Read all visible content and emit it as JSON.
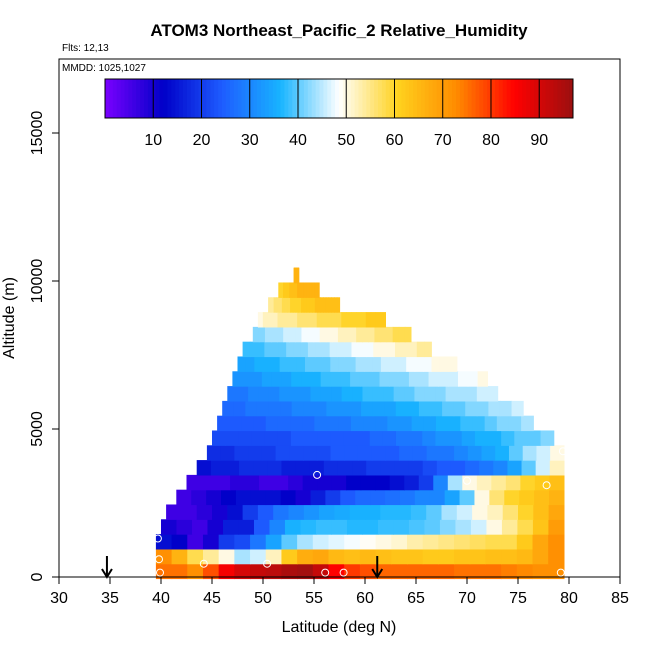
{
  "chart_data": {
    "type": "heatmap",
    "title": "ATOM3 Northeast_Pacific_2 Relative_Humidity",
    "flights_label": "Flts: 12,13",
    "dates_label": "MMDD: 1025,1027",
    "xlabel": "Latitude (deg N)",
    "ylabel": "Altitude (m)",
    "xlim": [
      30,
      85
    ],
    "ylim": [
      0,
      17500
    ],
    "x_ticks": [
      30,
      35,
      40,
      45,
      50,
      55,
      60,
      65,
      70,
      75,
      80,
      85
    ],
    "y_ticks": [
      0,
      5000,
      10000,
      15000
    ],
    "colorbar": {
      "range": [
        0,
        97
      ],
      "ticks": [
        10,
        20,
        30,
        40,
        50,
        60,
        70,
        80,
        90
      ],
      "colors": [
        "#7a00ff",
        "#0000c8",
        "#1e5cff",
        "#18b4ff",
        "#ffffff",
        "#ffd21e",
        "#ff8c00",
        "#ff0000",
        "#9b1010"
      ]
    },
    "grid": false,
    "curtain_bands": [
      {
        "alt": 200,
        "lat_min": 39.5,
        "lat_max": 79.5,
        "rh": [
          75,
          75,
          72,
          78,
          86,
          90,
          92,
          93,
          95,
          96,
          92,
          85,
          80,
          78,
          76,
          76,
          76,
          76,
          76,
          75,
          75,
          75,
          74,
          73,
          72,
          72
        ]
      },
      {
        "alt": 700,
        "lat_min": 39.5,
        "lat_max": 79.5,
        "rh": [
          72,
          66,
          58,
          54,
          50,
          44,
          46,
          52,
          62,
          67,
          68,
          65,
          64,
          65,
          64,
          63,
          63,
          62,
          62,
          63,
          63,
          64,
          64,
          65,
          68,
          72
        ]
      },
      {
        "alt": 1200,
        "lat_min": 39.5,
        "lat_max": 79.5,
        "rh": [
          14,
          12,
          6,
          10,
          20,
          22,
          28,
          34,
          40,
          44,
          46,
          47,
          48,
          49,
          50,
          51,
          53,
          54,
          55,
          56,
          57,
          58,
          58,
          62,
          68,
          72
        ]
      },
      {
        "alt": 1700,
        "lat_min": 40.0,
        "lat_max": 79.5,
        "rh": [
          10,
          8,
          6,
          10,
          16,
          16,
          24,
          30,
          36,
          37,
          38,
          38,
          37,
          37,
          38,
          38,
          39,
          40,
          42,
          44,
          46,
          50,
          54,
          58,
          63,
          70
        ]
      },
      {
        "alt": 2200,
        "lat_min": 40.5,
        "lat_max": 79.5,
        "rh": [
          6,
          6,
          8,
          10,
          14,
          20,
          24,
          28,
          30,
          32,
          34,
          35,
          36,
          36,
          37,
          37,
          38,
          40,
          44,
          46,
          50,
          52,
          56,
          60,
          64,
          68
        ]
      },
      {
        "alt": 2700,
        "lat_min": 41.5,
        "lat_max": 79.5,
        "rh": [
          6,
          8,
          10,
          12,
          14,
          14,
          14,
          12,
          10,
          16,
          20,
          24,
          26,
          26,
          27,
          28,
          30,
          30,
          34,
          40,
          50,
          56,
          60,
          62,
          64,
          66
        ]
      },
      {
        "alt": 3200,
        "lat_min": 42.5,
        "lat_max": 79.5,
        "rh": [
          6,
          6,
          6,
          8,
          8,
          6,
          6,
          8,
          10,
          10,
          10,
          12,
          12,
          12,
          14,
          16,
          20,
          30,
          44,
          50,
          52,
          54,
          56,
          60,
          62,
          64
        ]
      },
      {
        "alt": 3700,
        "lat_min": 43.5,
        "lat_max": 79.5,
        "rh": [
          14,
          16,
          16,
          18,
          18,
          18,
          16,
          16,
          16,
          18,
          18,
          18,
          20,
          20,
          20,
          20,
          22,
          24,
          24,
          26,
          28,
          30,
          34,
          40,
          46,
          52
        ]
      },
      {
        "alt": 4200,
        "lat_min": 44.5,
        "lat_max": 79.5,
        "rh": [
          18,
          18,
          20,
          20,
          20,
          22,
          22,
          22,
          22,
          24,
          24,
          24,
          24,
          24,
          26,
          26,
          28,
          28,
          30,
          32,
          34,
          36,
          40,
          44,
          46,
          50
        ]
      },
      {
        "alt": 4700,
        "lat_min": 45.0,
        "lat_max": 78.5,
        "rh": [
          22,
          22,
          22,
          22,
          22,
          22,
          24,
          24,
          24,
          24,
          24,
          24,
          26,
          26,
          28,
          28,
          30,
          32,
          32,
          34,
          36,
          36,
          38,
          40,
          40,
          42
        ]
      },
      {
        "alt": 5200,
        "lat_min": 45.5,
        "lat_max": 76.5,
        "rh": [
          24,
          24,
          24,
          24,
          26,
          26,
          26,
          26,
          28,
          28,
          28,
          30,
          30,
          30,
          32,
          32,
          34,
          34,
          36,
          36,
          38,
          38,
          40,
          42,
          42,
          44
        ]
      },
      {
        "alt": 5700,
        "lat_min": 46.0,
        "lat_max": 75.5,
        "rh": [
          26,
          26,
          28,
          28,
          28,
          28,
          30,
          30,
          30,
          32,
          32,
          32,
          34,
          34,
          34,
          36,
          36,
          38,
          38,
          40,
          40,
          42,
          42,
          44,
          44,
          46
        ]
      },
      {
        "alt": 6200,
        "lat_min": 46.5,
        "lat_max": 73.0,
        "rh": [
          28,
          28,
          30,
          30,
          30,
          32,
          32,
          32,
          34,
          34,
          34,
          36,
          36,
          38,
          38,
          38,
          40,
          40,
          42,
          42,
          42,
          44,
          44,
          44,
          46,
          46
        ]
      },
      {
        "alt": 6700,
        "lat_min": 47.0,
        "lat_max": 72.0,
        "rh": [
          32,
          32,
          32,
          34,
          34,
          34,
          36,
          36,
          36,
          38,
          38,
          38,
          40,
          40,
          40,
          42,
          42,
          42,
          44,
          44,
          46,
          46,
          46,
          48,
          48,
          50
        ]
      },
      {
        "alt": 7200,
        "lat_min": 47.5,
        "lat_max": 69.0,
        "rh": [
          34,
          34,
          36,
          36,
          36,
          38,
          38,
          38,
          40,
          40,
          40,
          42,
          42,
          42,
          44,
          44,
          44,
          46,
          46,
          46,
          48,
          48,
          48,
          50,
          50,
          50
        ]
      },
      {
        "alt": 7700,
        "lat_min": 48.0,
        "lat_max": 66.5,
        "rh": [
          38,
          38,
          38,
          40,
          40,
          40,
          42,
          42,
          42,
          44,
          44,
          44,
          46,
          46,
          46,
          48,
          48,
          48,
          50,
          50,
          50,
          52,
          52,
          52,
          54,
          54
        ]
      },
      {
        "alt": 8200,
        "lat_min": 49.0,
        "lat_max": 64.5,
        "rh": [
          42,
          42,
          44,
          44,
          44,
          46,
          46,
          46,
          48,
          48,
          48,
          50,
          50,
          50,
          52,
          52,
          52,
          54,
          54,
          54,
          56,
          56,
          56,
          58,
          58,
          58
        ]
      },
      {
        "alt": 8700,
        "lat_min": 49.5,
        "lat_max": 62.0,
        "rh": [
          50,
          52,
          52,
          52,
          54,
          54,
          54,
          54,
          56,
          56,
          56,
          56,
          58,
          58,
          58,
          58,
          58,
          60,
          60,
          60,
          60,
          60,
          62,
          62,
          62,
          62
        ]
      },
      {
        "alt": 9200,
        "lat_min": 50.5,
        "lat_max": 57.5,
        "rh": [
          54,
          54,
          56,
          56,
          56,
          58,
          58,
          58,
          60,
          60,
          60,
          60,
          62,
          62,
          62,
          62,
          62,
          64,
          64,
          64,
          64,
          64,
          64,
          64,
          64,
          64
        ]
      },
      {
        "alt": 9700,
        "lat_min": 51.5,
        "lat_max": 55.5,
        "rh": [
          60,
          60,
          60,
          62,
          62,
          62,
          62,
          64,
          64,
          64,
          64,
          64,
          66,
          66,
          66,
          66,
          66,
          66,
          66,
          66,
          66,
          66,
          66,
          66,
          66,
          66
        ]
      },
      {
        "alt": 10200,
        "lat_min": 53.0,
        "lat_max": 53.5,
        "rh": [
          66,
          66,
          66,
          66,
          66,
          66,
          66,
          66,
          66,
          66,
          66,
          66,
          66,
          66,
          66,
          66,
          66,
          66,
          66,
          66,
          66,
          66,
          66,
          66,
          66,
          66
        ]
      }
    ],
    "band_height_m": 500,
    "sample_markers": [
      {
        "lat": 39.7,
        "alt": 1300
      },
      {
        "lat": 39.8,
        "alt": 600
      },
      {
        "lat": 39.9,
        "alt": 150
      },
      {
        "lat": 44.2,
        "alt": 450
      },
      {
        "lat": 50.4,
        "alt": 450
      },
      {
        "lat": 55.3,
        "alt": 3450
      },
      {
        "lat": 56.1,
        "alt": 150
      },
      {
        "lat": 57.9,
        "alt": 150
      },
      {
        "lat": 70.0,
        "alt": 3250
      },
      {
        "lat": 77.8,
        "alt": 3100
      },
      {
        "lat": 79.2,
        "alt": 150
      },
      {
        "lat": 79.4,
        "alt": 4250
      }
    ],
    "arrow_markers_lat": [
      34.7,
      61.2
    ]
  }
}
